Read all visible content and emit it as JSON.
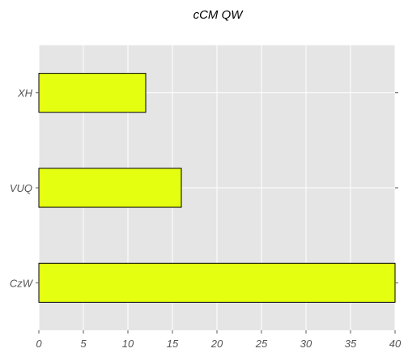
{
  "chart_data": {
    "type": "bar",
    "orientation": "horizontal",
    "title": "cCM QW",
    "xlabel": "",
    "ylabel": "",
    "categories": [
      "XH",
      "VUQ",
      "CzW"
    ],
    "values": [
      12,
      16,
      40
    ],
    "xlim": [
      0,
      40
    ],
    "xticks": [
      0,
      5,
      10,
      15,
      20,
      25,
      30,
      35,
      40
    ],
    "grid": true,
    "legend": "none",
    "colors": {
      "bar": "#e5ff10",
      "bar_edge": "#000000",
      "plot_background": "#e5e5e5",
      "grid": "#ffffff",
      "tick_text": "#555555",
      "title_text": "#000000"
    }
  }
}
